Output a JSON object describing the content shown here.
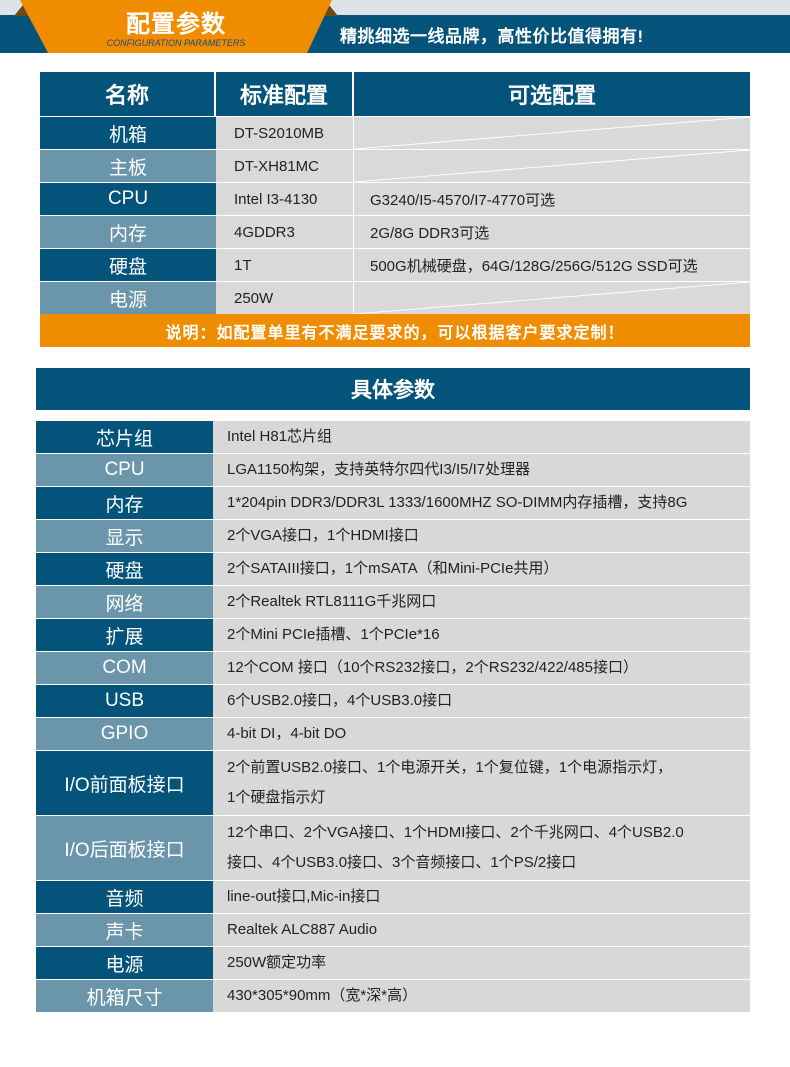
{
  "header": {
    "title": "配置参数",
    "subtitle": "CONFIGURATION PARAMETERS",
    "slogan": "精挑细选一线品牌，高性价比值得拥有!"
  },
  "colors": {
    "primary": "#03537b",
    "secondary": "#6b95ab",
    "accent": "#f08c00",
    "cell": "#d8d8d8"
  },
  "config_table": {
    "headers": [
      "名称",
      "标准配置",
      "可选配置"
    ],
    "rows": [
      {
        "name": "机箱",
        "standard": "DT-S2010MB",
        "optional": ""
      },
      {
        "name": "主板",
        "standard": "DT-XH81MC",
        "optional": ""
      },
      {
        "name": "CPU",
        "standard": "Intel I3-4130",
        "optional": "G3240/I5-4570/I7-4770可选"
      },
      {
        "name": "内存",
        "standard": "4GDDR3",
        "optional": "2G/8G DDR3可选"
      },
      {
        "name": "硬盘",
        "standard": "1T",
        "optional": "500G机械硬盘，64G/128G/256G/512G SSD可选"
      },
      {
        "name": "电源",
        "standard": "250W",
        "optional": ""
      }
    ],
    "note": "说明：如配置单里有不满足要求的，可以根据客户要求定制！"
  },
  "specs": {
    "title": "具体参数",
    "rows": [
      {
        "name": "芯片组",
        "lines": [
          "Intel H81芯片组"
        ]
      },
      {
        "name": "CPU",
        "lines": [
          "LGA1150构架，支持英特尔四代I3/I5/I7处理器"
        ]
      },
      {
        "name": "内存",
        "lines": [
          "1*204pin DDR3/DDR3L 1333/1600MHZ SO-DIMM内存插槽，支持8G"
        ]
      },
      {
        "name": "显示",
        "lines": [
          "2个VGA接口，1个HDMI接口"
        ]
      },
      {
        "name": "硬盘",
        "lines": [
          "2个SATAIII接口，1个mSATA（和Mini-PCIe共用）"
        ]
      },
      {
        "name": "网络",
        "lines": [
          "2个Realtek RTL8111G千兆网口"
        ]
      },
      {
        "name": "扩展",
        "lines": [
          "2个Mini PCIe插槽、1个PCIe*16"
        ]
      },
      {
        "name": "COM",
        "lines": [
          "12个COM 接口（10个RS232接口，2个RS232/422/485接口）"
        ]
      },
      {
        "name": "USB",
        "lines": [
          "6个USB2.0接口，4个USB3.0接口"
        ]
      },
      {
        "name": "GPIO",
        "lines": [
          "4-bit DI，4-bit DO"
        ]
      },
      {
        "name": "I/O前面板接口",
        "lines": [
          "2个前置USB2.0接口、1个电源开关，1个复位键，1个电源指示灯，",
          "1个硬盘指示灯"
        ]
      },
      {
        "name": "I/O后面板接口",
        "lines": [
          "12个串口、2个VGA接口、1个HDMI接口、2个千兆网口、4个USB2.0",
          "接口、4个USB3.0接口、3个音频接口、1个PS/2接口"
        ]
      },
      {
        "name": "音频",
        "lines": [
          "line-out接口,Mic-in接口"
        ]
      },
      {
        "name": "声卡",
        "lines": [
          "Realtek ALC887 Audio"
        ]
      },
      {
        "name": "电源",
        "lines": [
          "250W额定功率"
        ]
      },
      {
        "name": "机箱尺寸",
        "lines": [
          "430*305*90mm（宽*深*高）"
        ]
      }
    ]
  }
}
